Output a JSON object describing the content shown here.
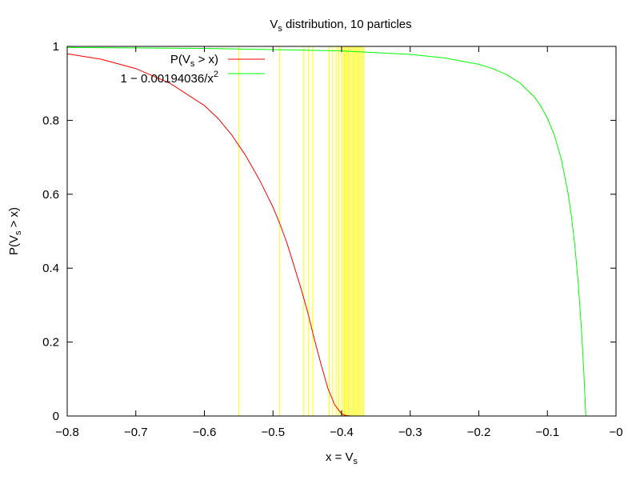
{
  "chart_data": {
    "type": "line",
    "title": {
      "prefix": "V",
      "sub": "s",
      "suffix": " distribution, 10 particles"
    },
    "xlabel": {
      "prefix": "x = V",
      "sub": "s",
      "suffix": ""
    },
    "ylabel": {
      "prefix": "P(V",
      "sub": "s",
      "suffix": " > x)"
    },
    "xlim": [
      -0.8,
      0
    ],
    "ylim": [
      0,
      1
    ],
    "x_ticks": [
      -0.8,
      -0.7,
      -0.6,
      -0.5,
      -0.4,
      -0.3,
      -0.2,
      -0.1,
      0
    ],
    "x_tick_labels": [
      "−0.8",
      "−0.7",
      "−0.6",
      "−0.5",
      "−0.4",
      "−0.3",
      "−0.2",
      "−0.1",
      "−0"
    ],
    "y_ticks": [
      0,
      0.2,
      0.4,
      0.6,
      0.8,
      1
    ],
    "y_tick_labels": [
      "0",
      "0.2",
      "0.4",
      "0.6",
      "0.8",
      "1"
    ],
    "grid": false,
    "legend_position": "top-left",
    "legend": [
      {
        "prefix": "P(V",
        "sub": "s",
        "suffix": " > x)",
        "sup": ""
      },
      {
        "prefix": "1 − 0.00194036/x",
        "sub": "",
        "suffix": "",
        "sup": "2"
      }
    ],
    "series": [
      {
        "color": "#ff0000",
        "x": [
          -0.8,
          -0.75,
          -0.7,
          -0.65,
          -0.6,
          -0.58,
          -0.56,
          -0.54,
          -0.52,
          -0.5,
          -0.49,
          -0.48,
          -0.47,
          -0.46,
          -0.45,
          -0.44,
          -0.43,
          -0.42,
          -0.41,
          -0.4,
          -0.395,
          -0.39,
          -0.385,
          -0.38
        ],
        "y": [
          0.98,
          0.965,
          0.94,
          0.9,
          0.84,
          0.805,
          0.76,
          0.705,
          0.64,
          0.565,
          0.52,
          0.47,
          0.41,
          0.35,
          0.285,
          0.21,
          0.14,
          0.075,
          0.03,
          0.006,
          0.002,
          0.0005,
          0.0,
          0.0
        ]
      },
      {
        "color": "#00ff00",
        "x": [
          -0.8,
          -0.6,
          -0.4,
          -0.3,
          -0.25,
          -0.2,
          -0.18,
          -0.16,
          -0.14,
          -0.12,
          -0.11,
          -0.1,
          -0.09,
          -0.08,
          -0.07,
          -0.065,
          -0.06,
          -0.055,
          -0.05,
          -0.047,
          -0.045,
          -0.044
        ],
        "y": [
          0.99697,
          0.99461,
          0.98787,
          0.97844,
          0.96895,
          0.95149,
          0.94011,
          0.92421,
          0.901,
          0.86525,
          0.83964,
          0.80596,
          0.76045,
          0.69682,
          0.60401,
          0.54076,
          0.46101,
          0.35864,
          0.22386,
          0.12162,
          0.0418,
          0.0
        ]
      }
    ],
    "sample_lines": {
      "color": "#ffff00",
      "x": [
        -0.55,
        -0.49,
        -0.455,
        -0.448,
        -0.442,
        -0.418,
        -0.413,
        -0.408,
        -0.404,
        -0.401,
        -0.398,
        -0.396,
        -0.394,
        -0.392,
        -0.39,
        -0.388,
        -0.386,
        -0.384,
        -0.382,
        -0.38,
        -0.378,
        -0.376,
        -0.374,
        -0.372,
        -0.37,
        -0.368
      ]
    }
  }
}
